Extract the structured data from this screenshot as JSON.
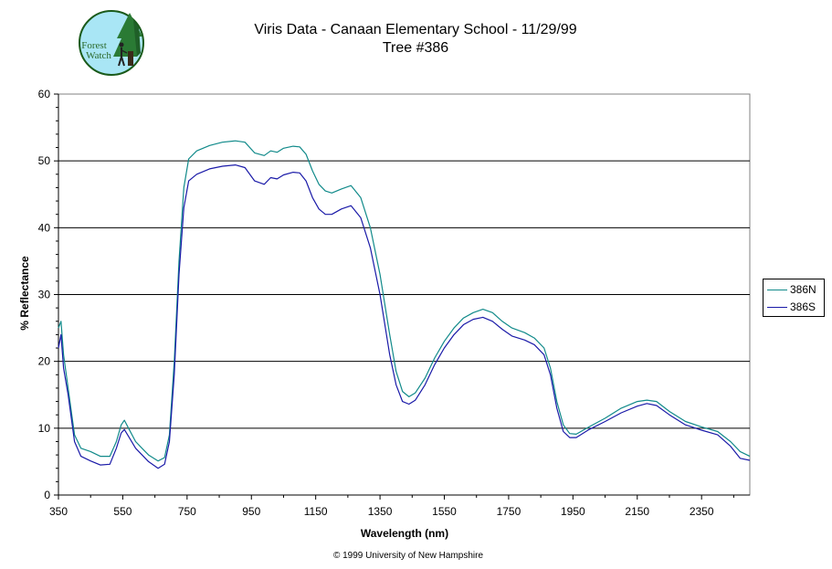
{
  "logo": {
    "line1": "Forest",
    "line2": "Watch"
  },
  "chart_data": {
    "type": "line",
    "title": "Viris Data - Canaan Elementary School - 11/29/99",
    "subtitle": "Tree #386",
    "xlabel": "Wavelength (nm)",
    "ylabel": "% Reflectance",
    "footer": "© 1999 University of New Hampshire",
    "xlim": [
      350,
      2500
    ],
    "ylim": [
      0,
      60
    ],
    "x_ticks": [
      350,
      550,
      750,
      950,
      1150,
      1350,
      1550,
      1750,
      1950,
      2150,
      2350
    ],
    "y_ticks": [
      0,
      10,
      20,
      30,
      40,
      50,
      60
    ],
    "grid": "horizontal",
    "legend_position": "right",
    "series": [
      {
        "name": "386N",
        "color": "#118a8a",
        "points": [
          [
            350,
            25
          ],
          [
            358,
            26
          ],
          [
            366,
            21
          ],
          [
            380,
            16
          ],
          [
            400,
            9
          ],
          [
            420,
            7
          ],
          [
            450,
            6.5
          ],
          [
            480,
            5.8
          ],
          [
            510,
            5.8
          ],
          [
            530,
            8
          ],
          [
            545,
            10.5
          ],
          [
            555,
            11.2
          ],
          [
            570,
            9.8
          ],
          [
            590,
            8
          ],
          [
            610,
            7
          ],
          [
            630,
            6
          ],
          [
            660,
            5.1
          ],
          [
            680,
            5.6
          ],
          [
            695,
            9
          ],
          [
            710,
            20
          ],
          [
            725,
            35
          ],
          [
            740,
            46
          ],
          [
            755,
            50.3
          ],
          [
            780,
            51.5
          ],
          [
            820,
            52.3
          ],
          [
            860,
            52.8
          ],
          [
            900,
            53
          ],
          [
            930,
            52.8
          ],
          [
            960,
            51.2
          ],
          [
            990,
            50.8
          ],
          [
            1010,
            51.5
          ],
          [
            1030,
            51.3
          ],
          [
            1050,
            51.9
          ],
          [
            1080,
            52.2
          ],
          [
            1100,
            52.1
          ],
          [
            1120,
            51
          ],
          [
            1140,
            48.5
          ],
          [
            1160,
            46.5
          ],
          [
            1180,
            45.5
          ],
          [
            1200,
            45.2
          ],
          [
            1230,
            45.8
          ],
          [
            1260,
            46.3
          ],
          [
            1290,
            44.5
          ],
          [
            1320,
            40
          ],
          [
            1350,
            33
          ],
          [
            1380,
            24
          ],
          [
            1400,
            18.5
          ],
          [
            1420,
            15.5
          ],
          [
            1440,
            14.7
          ],
          [
            1460,
            15.3
          ],
          [
            1490,
            17.5
          ],
          [
            1520,
            20.5
          ],
          [
            1550,
            23
          ],
          [
            1580,
            25
          ],
          [
            1610,
            26.5
          ],
          [
            1640,
            27.3
          ],
          [
            1670,
            27.8
          ],
          [
            1700,
            27.3
          ],
          [
            1730,
            26
          ],
          [
            1760,
            25
          ],
          [
            1800,
            24.3
          ],
          [
            1830,
            23.5
          ],
          [
            1860,
            22
          ],
          [
            1880,
            19
          ],
          [
            1900,
            14
          ],
          [
            1920,
            10.5
          ],
          [
            1940,
            9.2
          ],
          [
            1960,
            9.1
          ],
          [
            2000,
            10.2
          ],
          [
            2050,
            11.5
          ],
          [
            2100,
            13
          ],
          [
            2150,
            14
          ],
          [
            2180,
            14.2
          ],
          [
            2210,
            14
          ],
          [
            2250,
            12.5
          ],
          [
            2300,
            11
          ],
          [
            2350,
            10.2
          ],
          [
            2400,
            9.5
          ],
          [
            2440,
            8
          ],
          [
            2470,
            6.5
          ],
          [
            2500,
            5.8
          ]
        ]
      },
      {
        "name": "386S",
        "color": "#1a1aa8",
        "points": [
          [
            350,
            22
          ],
          [
            358,
            24
          ],
          [
            366,
            19
          ],
          [
            380,
            15
          ],
          [
            400,
            8
          ],
          [
            420,
            5.8
          ],
          [
            450,
            5.1
          ],
          [
            480,
            4.5
          ],
          [
            510,
            4.6
          ],
          [
            530,
            7
          ],
          [
            545,
            9.3
          ],
          [
            555,
            9.8
          ],
          [
            570,
            8.6
          ],
          [
            590,
            7
          ],
          [
            610,
            6
          ],
          [
            630,
            5
          ],
          [
            660,
            4
          ],
          [
            680,
            4.6
          ],
          [
            695,
            8
          ],
          [
            710,
            18
          ],
          [
            725,
            33
          ],
          [
            740,
            43
          ],
          [
            755,
            47
          ],
          [
            780,
            48
          ],
          [
            820,
            48.8
          ],
          [
            860,
            49.2
          ],
          [
            900,
            49.4
          ],
          [
            930,
            49
          ],
          [
            960,
            47
          ],
          [
            990,
            46.5
          ],
          [
            1010,
            47.5
          ],
          [
            1030,
            47.3
          ],
          [
            1050,
            47.9
          ],
          [
            1080,
            48.3
          ],
          [
            1100,
            48.2
          ],
          [
            1120,
            47
          ],
          [
            1140,
            44.5
          ],
          [
            1160,
            42.8
          ],
          [
            1180,
            42
          ],
          [
            1200,
            42
          ],
          [
            1230,
            42.8
          ],
          [
            1260,
            43.3
          ],
          [
            1290,
            41.5
          ],
          [
            1320,
            37
          ],
          [
            1350,
            30
          ],
          [
            1380,
            21
          ],
          [
            1400,
            16.5
          ],
          [
            1420,
            14
          ],
          [
            1440,
            13.6
          ],
          [
            1460,
            14.2
          ],
          [
            1490,
            16.5
          ],
          [
            1520,
            19.5
          ],
          [
            1550,
            22
          ],
          [
            1580,
            24
          ],
          [
            1610,
            25.5
          ],
          [
            1640,
            26.3
          ],
          [
            1670,
            26.6
          ],
          [
            1700,
            26
          ],
          [
            1730,
            24.8
          ],
          [
            1760,
            23.8
          ],
          [
            1800,
            23.2
          ],
          [
            1830,
            22.5
          ],
          [
            1860,
            21
          ],
          [
            1880,
            18
          ],
          [
            1900,
            13
          ],
          [
            1920,
            9.5
          ],
          [
            1940,
            8.6
          ],
          [
            1960,
            8.6
          ],
          [
            2000,
            9.8
          ],
          [
            2050,
            11
          ],
          [
            2100,
            12.3
          ],
          [
            2150,
            13.3
          ],
          [
            2180,
            13.7
          ],
          [
            2210,
            13.4
          ],
          [
            2250,
            12
          ],
          [
            2300,
            10.5
          ],
          [
            2350,
            9.7
          ],
          [
            2400,
            9
          ],
          [
            2440,
            7.3
          ],
          [
            2470,
            5.5
          ],
          [
            2500,
            5.2
          ]
        ]
      }
    ]
  }
}
